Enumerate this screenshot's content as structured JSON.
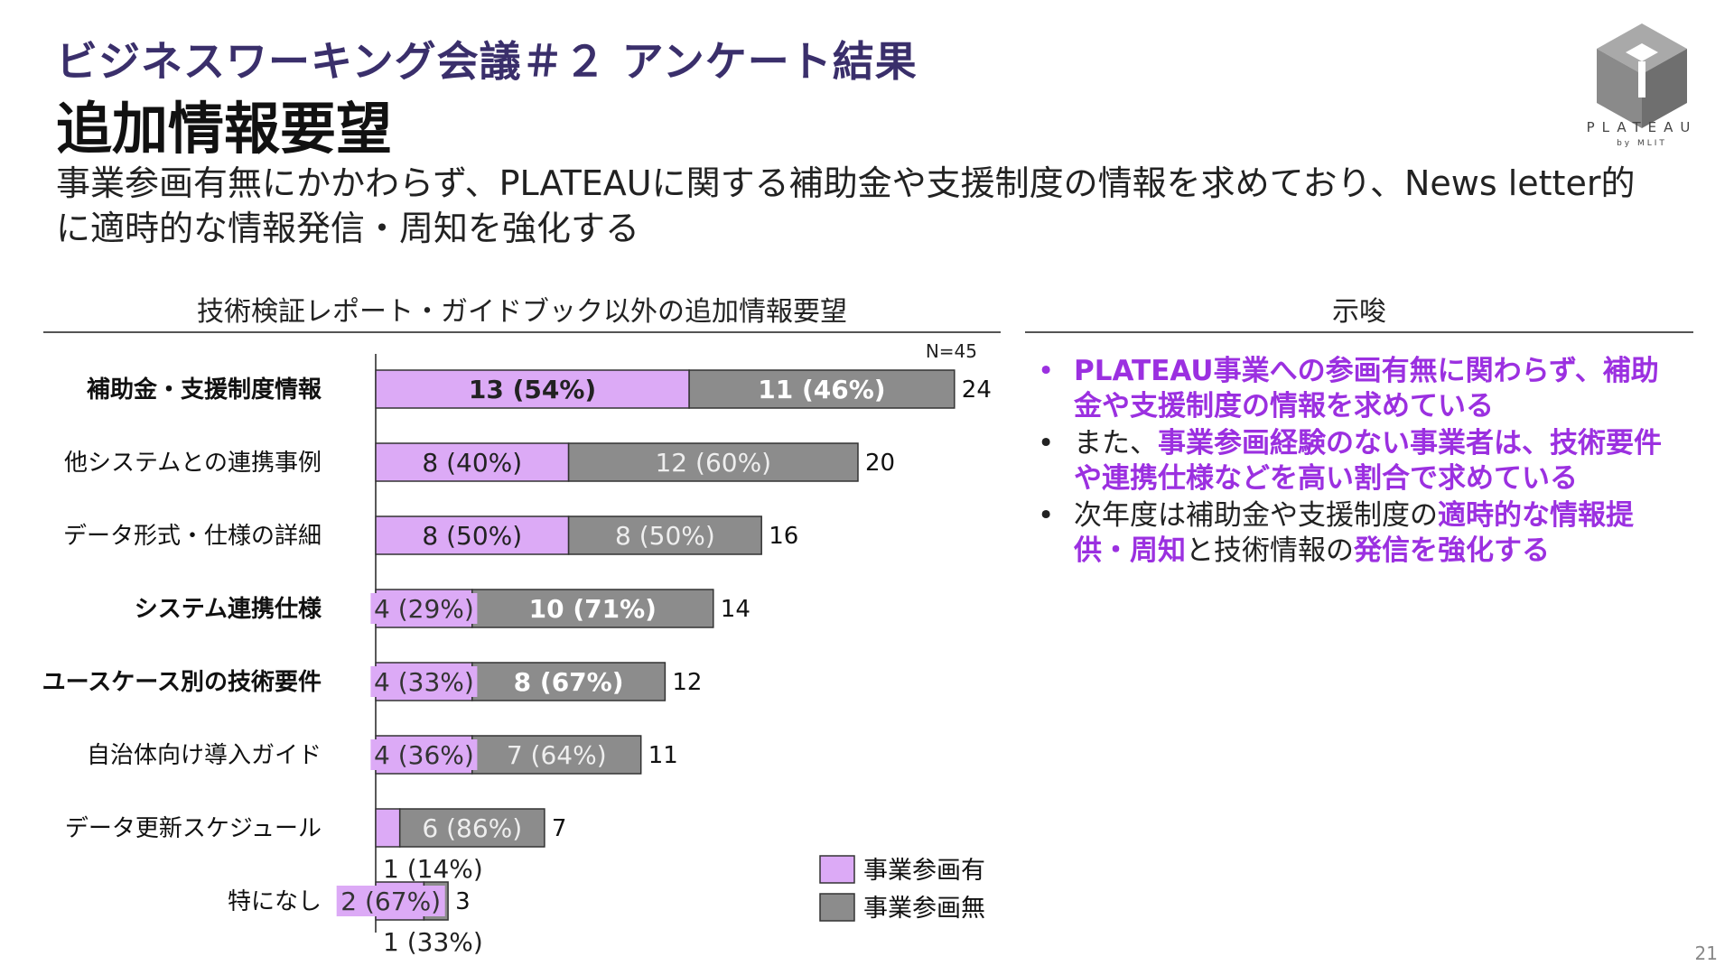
{
  "header": {
    "kicker": "ビジネスワーキング会議＃２ アンケート結果",
    "title": "追加情報要望",
    "lead": "事業参画有無にかかわらず、PLATEAUに関する補助金や支援制度の情報を求めており、News letter的に適時的な情報発信・周知を強化する"
  },
  "logo": {
    "name": "PLATEAU",
    "sub": "by MLIT"
  },
  "chart_section_title": "技術検証レポート・ガイドブック以外の追加情報要望",
  "insight_section_title": "示唆",
  "insights": {
    "b1": "PLATEAU事業への参画有無に関わらず、補助金や支援制度の情報を求めている",
    "b2a": "また、",
    "b2b": "事業参画経験のない事業者は、技術要件や連携仕様などを高い割合で求めている",
    "b3a": "次年度は補助金や支援制度の",
    "b3b": "適時的な情報提供・周知",
    "b3c": "と技術情報の",
    "b3d": "発信を強化する"
  },
  "page_number": "21",
  "chart_data": {
    "type": "bar",
    "orientation": "horizontal",
    "stacked": true,
    "n_label": "N=45",
    "categories": [
      "補助金・支援制度情報",
      "他システムとの連携事例",
      "データ形式・仕様の詳細",
      "システム連携仕様",
      "ユースケース別の技術要件",
      "自治体向け導入ガイド",
      "データ更新スケジュール",
      "特になし"
    ],
    "bold_categories": [
      0,
      3,
      4
    ],
    "series": [
      {
        "name": "事業参画有",
        "color": "#dcaaf6",
        "values": [
          13,
          8,
          8,
          4,
          4,
          4,
          1,
          2
        ],
        "labels": [
          "13 (54%)",
          "8 (40%)",
          "8 (50%)",
          "4 (29%)",
          "4 (33%)",
          "4 (36%)",
          "1 (14%)",
          "2 (67%)"
        ]
      },
      {
        "name": "事業参画無",
        "color": "#8c8c8c",
        "values": [
          11,
          12,
          8,
          10,
          8,
          7,
          6,
          1
        ],
        "labels": [
          "11 (46%)",
          "12 (60%)",
          "8 (50%)",
          "10 (71%)",
          "8 (67%)",
          "7 (64%)",
          "6 (86%)",
          "1 (33%)"
        ]
      }
    ],
    "bold_value_labels": [
      0,
      3,
      4
    ],
    "totals": [
      24,
      20,
      16,
      14,
      12,
      11,
      7,
      3
    ],
    "xlim": [
      0,
      24
    ]
  }
}
